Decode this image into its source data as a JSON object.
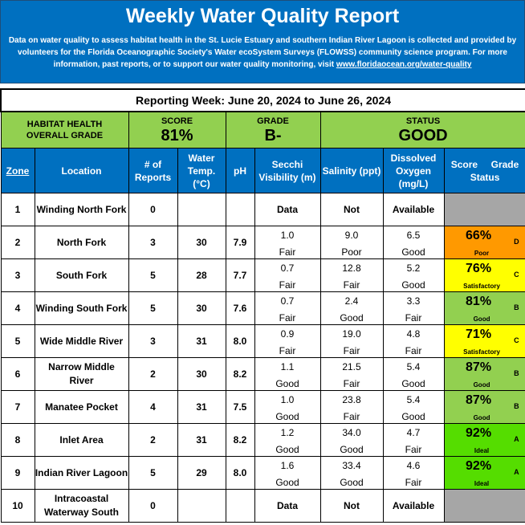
{
  "header": {
    "title": "Weekly Water Quality Report",
    "description_pre": "Data on water quality to assess habitat health in the St. Lucie Estuary and southern Indian River Lagoon is collected and provided by volunteers for the Florida Oceanographic Society's Water ecoSystem Surveys (FLOWSS) community science program.  For more information, past reports, or to support our water quality monitoring, visit ",
    "link_text": "www.floridaocean.org/water-quality",
    "bg_color": "#0070c0"
  },
  "reporting_week": "Reporting Week: June 20, 2024 to June 26, 2024",
  "overall": {
    "label_line1": "HABITAT HEALTH",
    "label_line2": "OVERALL GRADE",
    "score_label": "SCORE",
    "score_value": "81%",
    "grade_label": "GRADE",
    "grade_value": "B-",
    "status_label": "STATUS",
    "status_value": "GOOD"
  },
  "columns": {
    "zone": "Zone",
    "location": "Location",
    "reports": "# of Reports",
    "temp": "Water Temp. (°C)",
    "ph": "pH",
    "secchi": "Secchi Visibility (m)",
    "salinity": "Salinity (ppt)",
    "oxygen": "Dissolved Oxygen (mg/L)",
    "score": "Score",
    "grade": "Grade",
    "status": "Status"
  },
  "no_data": {
    "secchi": "Data",
    "salinity": "Not",
    "oxygen": "Available"
  },
  "zones": [
    {
      "zone": "1",
      "location": "Winding North Fork",
      "reports": "0",
      "no_data": true
    },
    {
      "zone": "2",
      "location": "North Fork",
      "reports": "3",
      "temp": "30",
      "ph": "7.9",
      "secchi": "1.0",
      "secchi_q": "Fair",
      "salinity": "9.0",
      "salinity_q": "Poor",
      "oxygen": "6.5",
      "oxygen_q": "Good",
      "score": "66%",
      "grade": "D",
      "status": "Poor",
      "color": "#ff9900"
    },
    {
      "zone": "3",
      "location": "South Fork",
      "reports": "5",
      "temp": "28",
      "ph": "7.7",
      "secchi": "0.7",
      "secchi_q": "Fair",
      "salinity": "12.8",
      "salinity_q": "Fair",
      "oxygen": "5.2",
      "oxygen_q": "Good",
      "score": "76%",
      "grade": "C",
      "status": "Satisfactory",
      "color": "#ffff00"
    },
    {
      "zone": "4",
      "location": "Winding South Fork",
      "reports": "5",
      "temp": "30",
      "ph": "7.6",
      "secchi": "0.7",
      "secchi_q": "Fair",
      "salinity": "2.4",
      "salinity_q": "Good",
      "oxygen": "3.3",
      "oxygen_q": "Fair",
      "score": "81%",
      "grade": "B",
      "status": "Good",
      "color": "#92d050"
    },
    {
      "zone": "5",
      "location": "Wide Middle River",
      "reports": "3",
      "temp": "31",
      "ph": "8.0",
      "secchi": "0.9",
      "secchi_q": "Fair",
      "salinity": "19.0",
      "salinity_q": "Fair",
      "oxygen": "4.8",
      "oxygen_q": "Fair",
      "score": "71%",
      "grade": "C",
      "status": "Satisfactory",
      "color": "#ffff00"
    },
    {
      "zone": "6",
      "location": "Narrow Middle River",
      "reports": "2",
      "temp": "30",
      "ph": "8.2",
      "secchi": "1.1",
      "secchi_q": "Good",
      "salinity": "21.5",
      "salinity_q": "Fair",
      "oxygen": "5.4",
      "oxygen_q": "Good",
      "score": "87%",
      "grade": "B",
      "status": "Good",
      "color": "#92d050"
    },
    {
      "zone": "7",
      "location": "Manatee Pocket",
      "reports": "4",
      "temp": "31",
      "ph": "7.5",
      "secchi": "1.0",
      "secchi_q": "Good",
      "salinity": "23.8",
      "salinity_q": "Fair",
      "oxygen": "5.4",
      "oxygen_q": "Good",
      "score": "87%",
      "grade": "B",
      "status": "Good",
      "color": "#92d050"
    },
    {
      "zone": "8",
      "location": "Inlet Area",
      "reports": "2",
      "temp": "31",
      "ph": "8.2",
      "secchi": "1.2",
      "secchi_q": "Good",
      "salinity": "34.0",
      "salinity_q": "Good",
      "oxygen": "4.7",
      "oxygen_q": "Fair",
      "score": "92%",
      "grade": "A",
      "status": "Ideal",
      "color": "#55dd00"
    },
    {
      "zone": "9",
      "location": "Indian River Lagoon",
      "reports": "5",
      "temp": "29",
      "ph": "8.0",
      "secchi": "1.6",
      "secchi_q": "Good",
      "salinity": "33.4",
      "salinity_q": "Good",
      "oxygen": "4.6",
      "oxygen_q": "Fair",
      "score": "92%",
      "grade": "A",
      "status": "Ideal",
      "color": "#55dd00"
    },
    {
      "zone": "10",
      "location": "Intracoastal Waterway South",
      "reports": "0",
      "no_data": true
    }
  ]
}
